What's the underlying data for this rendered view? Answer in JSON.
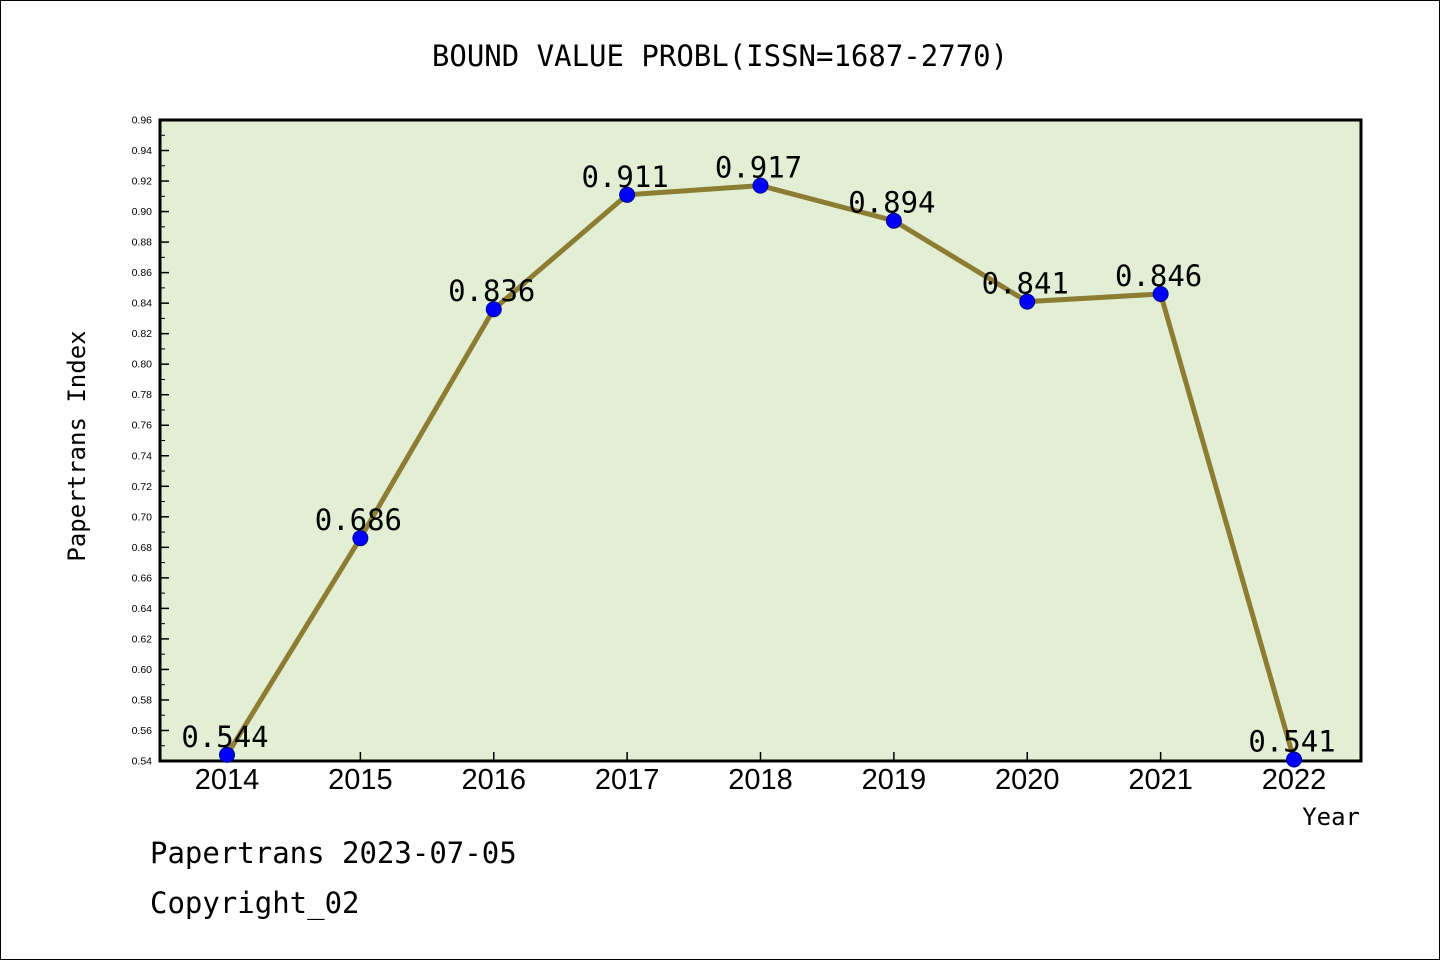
{
  "chart_data": {
    "type": "line",
    "title": "BOUND VALUE PROBL(ISSN=1687-2770)",
    "xlabel": "Year",
    "ylabel": "Papertrans Index",
    "x": [
      "2014",
      "2015",
      "2016",
      "2017",
      "2018",
      "2019",
      "2020",
      "2021",
      "2022"
    ],
    "series": [
      {
        "values": [
          0.544,
          0.686,
          0.836,
          0.911,
          0.917,
          0.894,
          0.841,
          0.846,
          0.541
        ],
        "labels": [
          "0.544",
          "0.686",
          "0.836",
          "0.911",
          "0.917",
          "0.894",
          "0.841",
          "0.846",
          "0.541"
        ]
      }
    ],
    "ylim": [
      0.54,
      0.96
    ],
    "yticks": [
      "0.54",
      "0.56",
      "0.58",
      "0.60",
      "0.62",
      "0.64",
      "0.66",
      "0.68",
      "0.70",
      "0.72",
      "0.74",
      "0.76",
      "0.78",
      "0.80",
      "0.82",
      "0.84",
      "0.86",
      "0.88",
      "0.90",
      "0.92",
      "0.94",
      "0.96"
    ],
    "grid": false,
    "legend": "none",
    "colors": {
      "plot_background": "#e2efd5",
      "line": "#8c7d32",
      "marker": "#0000ff"
    }
  },
  "footer": {
    "line1": "Papertrans 2023-07-05",
    "line2": "Copyright_02"
  }
}
